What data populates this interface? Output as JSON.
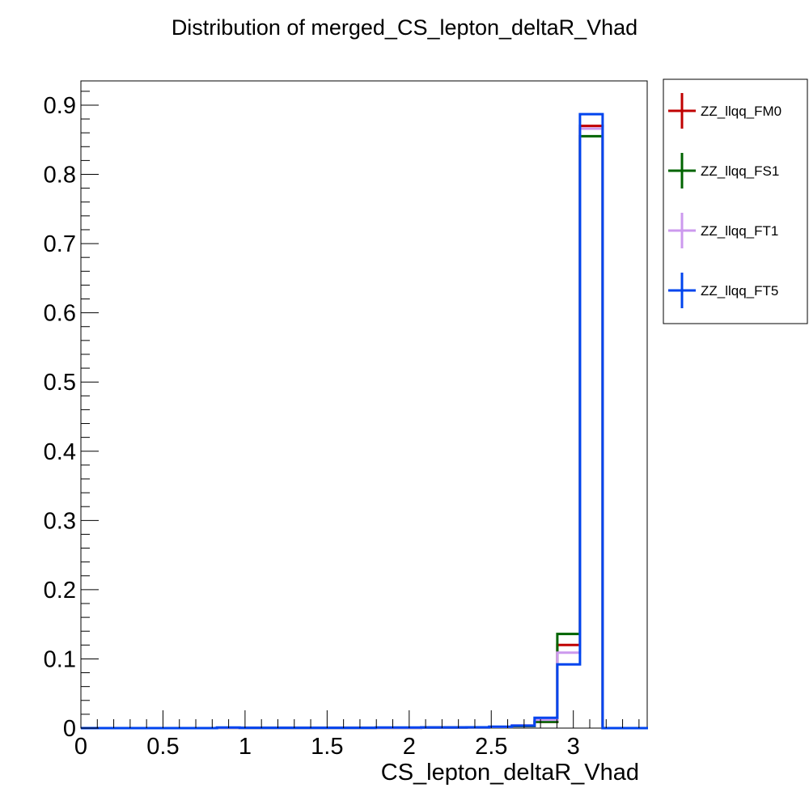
{
  "chart_data": {
    "type": "line",
    "title": "Distribution of merged_CS_lepton_deltaR_Vhad",
    "xlabel": "CS_lepton_deltaR_Vhad",
    "ylabel": "",
    "xlim": [
      0,
      3.45
    ],
    "ylim": [
      0,
      0.935
    ],
    "x_ticks": [
      {
        "value": 0,
        "label": "0"
      },
      {
        "value": 0.5,
        "label": "0.5"
      },
      {
        "value": 1,
        "label": "1"
      },
      {
        "value": 1.5,
        "label": "1.5"
      },
      {
        "value": 2,
        "label": "2"
      },
      {
        "value": 2.5,
        "label": "2.5"
      },
      {
        "value": 3,
        "label": "3"
      }
    ],
    "y_ticks": [
      {
        "value": 0,
        "label": "0"
      },
      {
        "value": 0.1,
        "label": "0.1"
      },
      {
        "value": 0.2,
        "label": "0.2"
      },
      {
        "value": 0.3,
        "label": "0.3"
      },
      {
        "value": 0.4,
        "label": "0.4"
      },
      {
        "value": 0.5,
        "label": "0.5"
      },
      {
        "value": 0.6,
        "label": "0.6"
      },
      {
        "value": 0.7,
        "label": "0.7"
      },
      {
        "value": 0.8,
        "label": "0.8"
      },
      {
        "value": 0.9,
        "label": "0.9"
      }
    ],
    "grid": false,
    "legend_position": "top-right, outside plot",
    "bin_edges": [
      0,
      0.1382,
      0.2764,
      0.4146,
      0.5528,
      0.691,
      0.8292,
      0.9674,
      1.1056,
      1.2438,
      1.382,
      1.5202,
      1.6584,
      1.7966,
      1.9348,
      2.073,
      2.2112,
      2.3494,
      2.4876,
      2.6258,
      2.764,
      2.9022,
      3.0404,
      3.1786,
      3.3168,
      3.455
    ],
    "series": [
      {
        "name": "ZZ_llqq_FM0",
        "color": "#c00000",
        "values": [
          0,
          0,
          0,
          0,
          0,
          0,
          0.0005,
          0.0003,
          0.0003,
          0.0003,
          0.0003,
          0.0003,
          0.0003,
          0.0005,
          0.0005,
          0.0008,
          0.0008,
          0.001,
          0.0015,
          0.003,
          0.009,
          0.12,
          0.87,
          0,
          0
        ]
      },
      {
        "name": "ZZ_llqq_FS1",
        "color": "#006400",
        "values": [
          0,
          0,
          0,
          0,
          0,
          0,
          0.0005,
          0.0003,
          0.0003,
          0.0003,
          0.0003,
          0.0003,
          0.0003,
          0.0005,
          0.0005,
          0.0008,
          0.0008,
          0.001,
          0.0015,
          0.003,
          0.009,
          0.136,
          0.855,
          0,
          0
        ]
      },
      {
        "name": "ZZ_llqq_FT1",
        "color": "#cc99ee",
        "values": [
          0,
          0,
          0,
          0,
          0,
          0,
          0.0005,
          0.0003,
          0.0003,
          0.0003,
          0.0003,
          0.0003,
          0.0003,
          0.0005,
          0.0005,
          0.0008,
          0.0008,
          0.001,
          0.0018,
          0.004,
          0.012,
          0.109,
          0.866,
          0,
          0
        ]
      },
      {
        "name": "ZZ_llqq_FT5",
        "color": "#0044ee",
        "values": [
          0,
          0,
          0,
          0,
          0,
          0,
          0.0008,
          0.0005,
          0.0005,
          0.0005,
          0.0005,
          0.0005,
          0.0005,
          0.0008,
          0.0008,
          0.001,
          0.001,
          0.0012,
          0.002,
          0.0035,
          0.015,
          0.092,
          0.887,
          0,
          0
        ]
      }
    ]
  }
}
